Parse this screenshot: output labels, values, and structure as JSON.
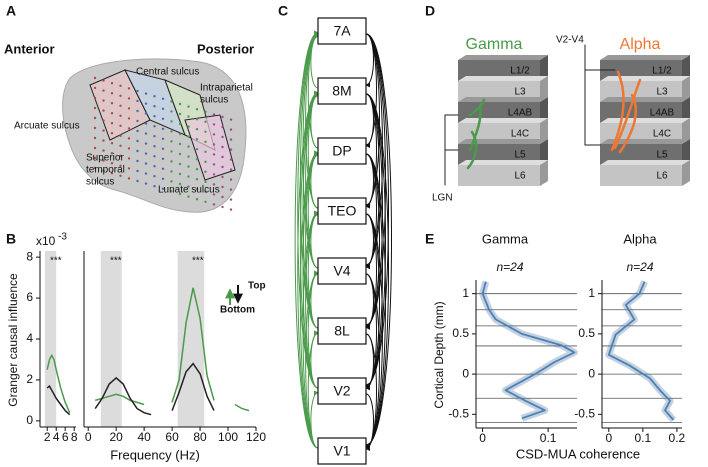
{
  "panel_labels": [
    "A",
    "B",
    "C",
    "D",
    "E"
  ],
  "panel_a": {
    "anterior": "Anterior",
    "posterior": "Posterior",
    "sulci": [
      [
        "Central sulcus"
      ],
      [
        "Intraparietal",
        "sulcus"
      ],
      [
        "Arcuate sulcus"
      ],
      [
        "Superior",
        "temporal",
        "sulcus"
      ],
      [
        "Lunate sulcus"
      ]
    ]
  },
  "panel_b": {
    "scale": "x10",
    "scale_exp": "-3"
  },
  "panel_c": {
    "nodes": [
      "7A",
      "8M",
      "DP",
      "TEO",
      "V4",
      "8L",
      "V2",
      "V1"
    ]
  },
  "panel_d": {
    "titles": [
      "Gamma",
      "Alpha"
    ],
    "input_left": "LGN",
    "input_right": "V2-V4",
    "layers": [
      "L1/2",
      "L3",
      "L4AB",
      "L4C",
      "L5",
      "L6"
    ]
  },
  "chart_data": [
    {
      "type": "line",
      "y_label": "Granger causal influence",
      "x": [
        2,
        2.5,
        3,
        3.5,
        4,
        5,
        6,
        7
      ],
      "series": [
        {
          "color": "#4a9a4a",
          "values": [
            2.5,
            3.0,
            3.2,
            3.0,
            2.5,
            1.6,
            0.9,
            0.4
          ]
        },
        {
          "color": "#222222",
          "values": [
            1.6,
            1.7,
            1.5,
            1.3,
            1.1,
            0.8,
            0.5,
            0.3
          ]
        }
      ],
      "bands": [
        [
          1.5,
          4
        ]
      ],
      "annotations": [
        "***"
      ],
      "xlim": [
        0.4,
        8.4
      ],
      "ylim": [
        -0.3,
        8.3
      ],
      "xticks": [
        2,
        4,
        6,
        8
      ],
      "yticks": [
        0,
        2,
        4,
        6,
        8
      ]
    },
    {
      "type": "line",
      "x_label": "Frequency (Hz)",
      "x": [
        5,
        10,
        15,
        20,
        25,
        30,
        35,
        40,
        45,
        50,
        55,
        60,
        65,
        70,
        75,
        80,
        85,
        90,
        95,
        100,
        105,
        110,
        115
      ],
      "series": [
        {
          "name": "Top",
          "color": "#4a9a4a",
          "values": [
            1.0,
            1.1,
            1.2,
            1.3,
            1.2,
            1.0,
            0.9,
            0.8,
            null,
            null,
            null,
            0.9,
            2.0,
            4.8,
            6.5,
            5.0,
            2.2,
            1.0,
            null,
            null,
            0.8,
            0.6,
            0.5
          ]
        },
        {
          "name": "Bottom",
          "color": "#222222",
          "values": [
            0.6,
            1.1,
            1.8,
            2.1,
            1.8,
            1.1,
            0.6,
            0.4,
            0.3,
            null,
            null,
            0.5,
            1.4,
            2.4,
            2.8,
            2.3,
            1.2,
            0.5,
            null,
            null,
            null,
            null,
            null
          ]
        }
      ],
      "bands": [
        [
          9,
          24
        ],
        [
          64,
          83
        ]
      ],
      "annotations": [
        "***",
        "***"
      ],
      "xlim": [
        -3,
        120
      ],
      "ylim": [
        -0.3,
        8.3
      ],
      "xticks": [
        0,
        20,
        40,
        60,
        80,
        100,
        120
      ]
    },
    {
      "type": "profile",
      "title": "Gamma",
      "annotation": "n=24",
      "y_label": "Cortical Depth (mm)",
      "x_label": "CSD-MUA coherence",
      "color": "#4f7fb0",
      "depth": [
        1.15,
        1.0,
        0.8,
        0.68,
        0.5,
        0.36,
        0.27,
        0.15,
        0,
        -0.2,
        -0.33,
        -0.45,
        -0.55
      ],
      "values": [
        0.005,
        0.0,
        0.01,
        0.02,
        0.06,
        0.12,
        0.14,
        0.11,
        0.08,
        0.035,
        0.065,
        0.095,
        0.06
      ],
      "boundaries": [
        1,
        0.8,
        0.6,
        0.35,
        0,
        -0.3,
        -0.6
      ],
      "xlim": [
        -0.01,
        0.144
      ],
      "ylim": [
        -0.67,
        1.17
      ],
      "xticks": [
        0,
        0.1
      ],
      "yticks": [
        -0.5,
        0,
        0.5,
        1
      ]
    },
    {
      "type": "profile",
      "title": "Alpha",
      "annotation": "n=24",
      "color": "#4f7fb0",
      "depth": [
        1.15,
        1.0,
        0.86,
        0.68,
        0.49,
        0.24,
        0.11,
        -0.05,
        -0.2,
        -0.33,
        -0.45,
        -0.57
      ],
      "values": [
        0.105,
        0.09,
        0.05,
        0.075,
        0.02,
        0.0,
        0.06,
        0.12,
        0.15,
        0.18,
        0.165,
        0.19
      ],
      "boundaries": [
        1,
        0.8,
        0.6,
        0.35,
        0,
        -0.3,
        -0.6
      ],
      "xlim": [
        -0.02,
        0.215
      ],
      "ylim": [
        -0.67,
        1.17
      ],
      "xticks": [
        0,
        0.1,
        0.2
      ],
      "yticks": [
        -0.5,
        0,
        0.5,
        1
      ]
    }
  ]
}
